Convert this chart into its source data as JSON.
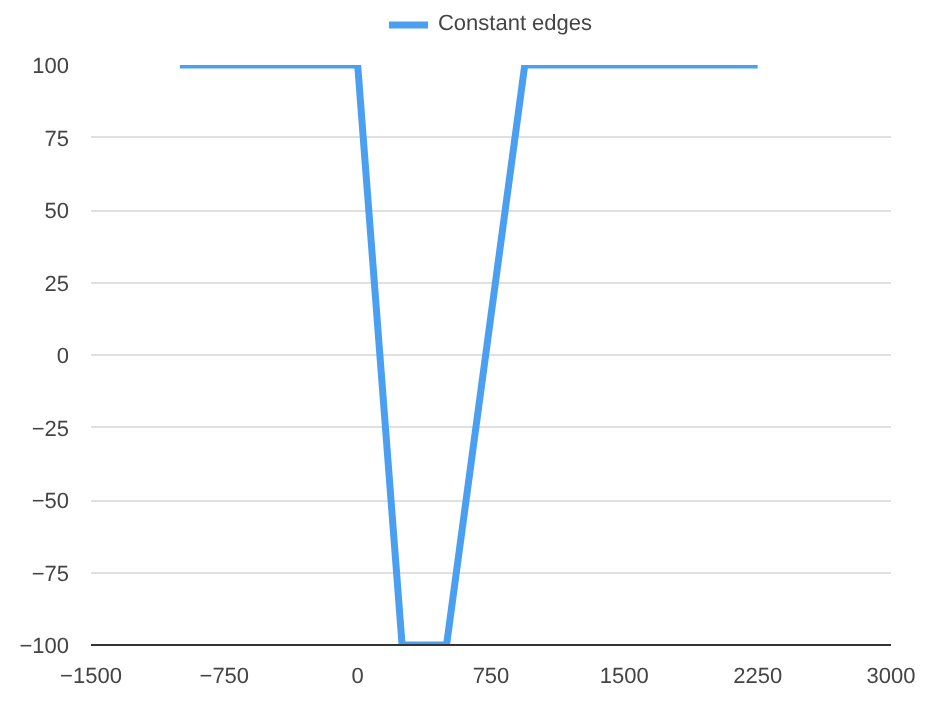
{
  "chart_data": {
    "type": "line",
    "x": [
      -1000,
      0,
      250,
      500,
      940,
      2250
    ],
    "series": [
      {
        "name": "Constant edges",
        "color": "#4a9ff0",
        "values": [
          100,
          100,
          -100,
          -100,
          100,
          100
        ]
      }
    ],
    "xlim": [
      -1500,
      3000
    ],
    "xticks": [
      -1500,
      -750,
      0,
      750,
      1500,
      2250,
      3000
    ],
    "ylim": [
      -100,
      100
    ],
    "yticks": [
      -100,
      -75,
      -50,
      -25,
      0,
      25,
      50,
      75,
      100
    ],
    "grid": "y",
    "legend": "top",
    "marker": "none",
    "line_style": "solid"
  }
}
